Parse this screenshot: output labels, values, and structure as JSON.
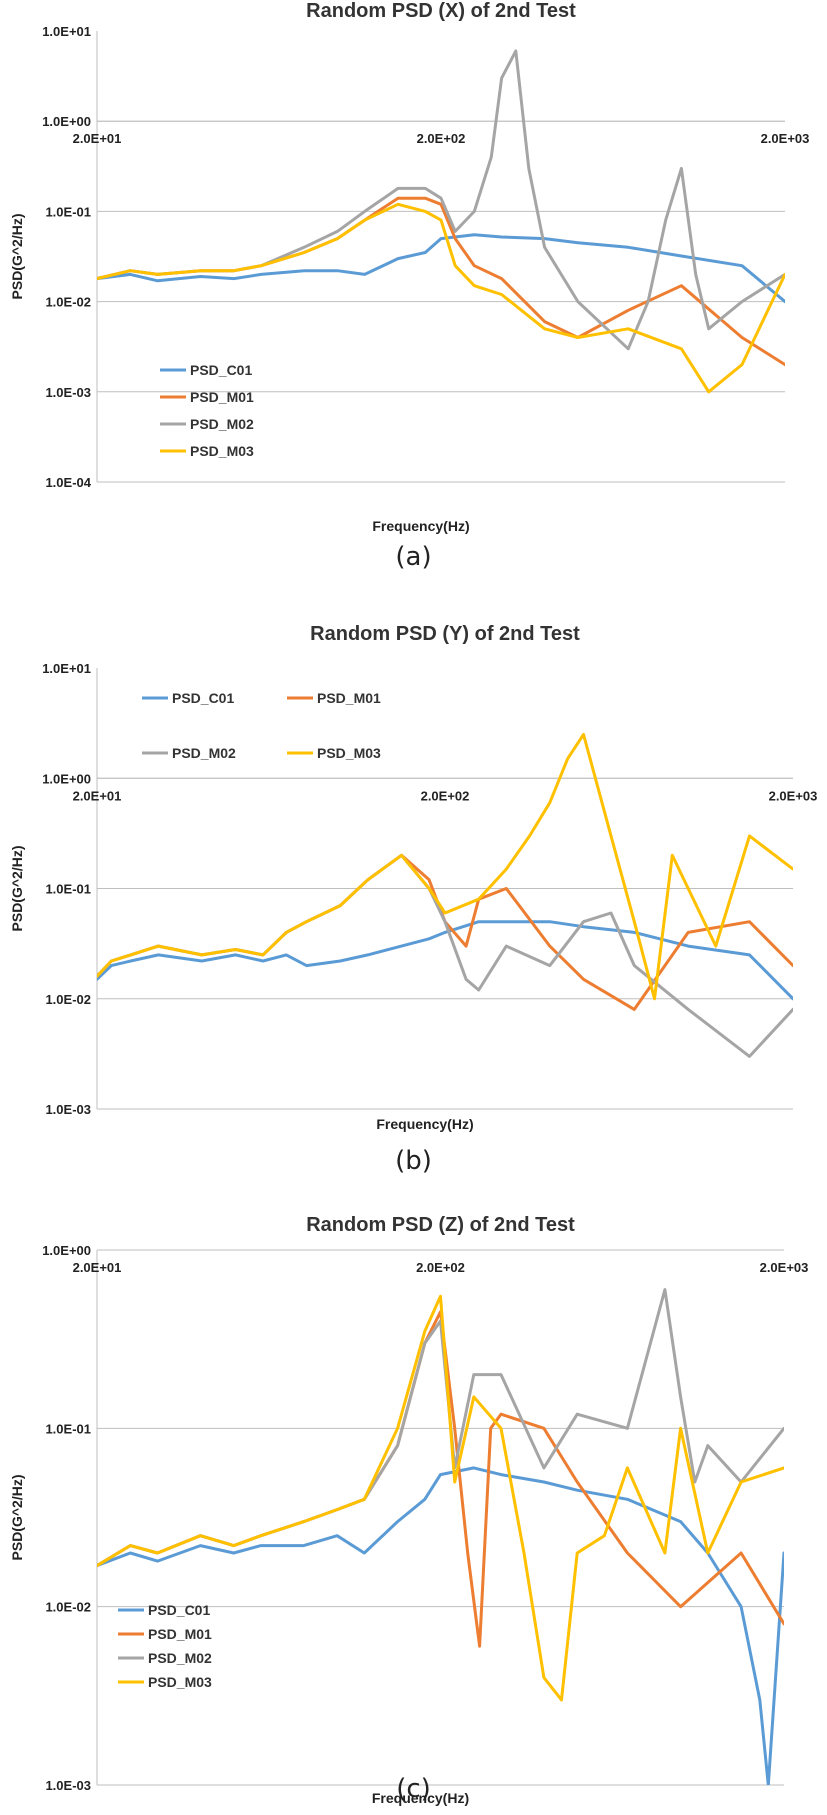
{
  "colors": {
    "PSD_C01": "#5b9bd5",
    "PSD_M01": "#ed7d31",
    "PSD_M02": "#a5a5a5",
    "PSD_M03": "#ffc000",
    "grid": "#bfbfbf"
  },
  "chart_data": [
    {
      "type": "line",
      "caption": "(a)",
      "title": "Random PSD (X) of 2nd Test",
      "xlabel": "Frequency(Hz)",
      "ylabel": "PSD(G^2/Hz)",
      "xscale": "log",
      "yscale": "log",
      "xlim": [
        20,
        2000
      ],
      "ylim": [
        0.0001,
        10
      ],
      "xtick_labels": [
        "2.0E+01",
        "2.0E+02",
        "2.0E+03"
      ],
      "xtick_values": [
        20,
        200,
        2000
      ],
      "xticks_at_y": 1.0,
      "ytick_labels": [
        "1.0E+01",
        "1.0E+00",
        "1.0E-01",
        "1.0E-02",
        "1.0E-03",
        "1.0E-04"
      ],
      "ytick_values": [
        10,
        1,
        0.1,
        0.01,
        0.001,
        0.0001
      ],
      "grid": true,
      "legend": {
        "placement": "lower-left",
        "layout": "vertical",
        "entries": [
          "PSD_C01",
          "PSD_M01",
          "PSD_M02",
          "PSD_M03"
        ]
      },
      "series": [
        {
          "name": "PSD_C01",
          "x": [
            20,
            25,
            30,
            40,
            50,
            60,
            80,
            100,
            120,
            150,
            180,
            200,
            250,
            300,
            400,
            500,
            700,
            1000,
            1500,
            2000
          ],
          "y": [
            0.018,
            0.02,
            0.017,
            0.019,
            0.018,
            0.02,
            0.022,
            0.022,
            0.02,
            0.03,
            0.035,
            0.05,
            0.055,
            0.052,
            0.05,
            0.045,
            0.04,
            0.032,
            0.025,
            0.01
          ]
        },
        {
          "name": "PSD_M01",
          "x": [
            20,
            25,
            30,
            40,
            50,
            60,
            80,
            100,
            120,
            150,
            180,
            200,
            220,
            250,
            300,
            400,
            500,
            700,
            1000,
            1500,
            2000
          ],
          "y": [
            0.018,
            0.022,
            0.02,
            0.022,
            0.022,
            0.025,
            0.035,
            0.05,
            0.08,
            0.14,
            0.14,
            0.12,
            0.05,
            0.025,
            0.018,
            0.006,
            0.004,
            0.008,
            0.015,
            0.004,
            0.002
          ]
        },
        {
          "name": "PSD_M02",
          "x": [
            20,
            25,
            30,
            40,
            50,
            60,
            80,
            100,
            120,
            150,
            180,
            200,
            220,
            250,
            280,
            300,
            330,
            360,
            400,
            500,
            700,
            800,
            900,
            1000,
            1100,
            1200,
            1500,
            2000
          ],
          "y": [
            0.018,
            0.022,
            0.02,
            0.022,
            0.022,
            0.025,
            0.04,
            0.06,
            0.1,
            0.18,
            0.18,
            0.14,
            0.06,
            0.1,
            0.4,
            3,
            6,
            0.3,
            0.04,
            0.01,
            0.003,
            0.01,
            0.08,
            0.3,
            0.02,
            0.005,
            0.01,
            0.02
          ]
        },
        {
          "name": "PSD_M03",
          "x": [
            20,
            25,
            30,
            40,
            50,
            60,
            80,
            100,
            120,
            150,
            180,
            200,
            220,
            250,
            300,
            400,
            500,
            700,
            1000,
            1200,
            1500,
            2000
          ],
          "y": [
            0.018,
            0.022,
            0.02,
            0.022,
            0.022,
            0.025,
            0.035,
            0.05,
            0.08,
            0.12,
            0.1,
            0.08,
            0.025,
            0.015,
            0.012,
            0.005,
            0.004,
            0.005,
            0.003,
            0.001,
            0.002,
            0.02
          ]
        }
      ]
    },
    {
      "type": "line",
      "caption": "(b)",
      "title": "Random PSD (Y) of 2nd Test",
      "xlabel": "Frequency(Hz)",
      "ylabel": "PSD(G^2/Hz)",
      "xscale": "log",
      "yscale": "log",
      "xlim": [
        20,
        2000
      ],
      "ylim": [
        0.001,
        10
      ],
      "xtick_labels": [
        "2.0E+01",
        "2.0E+02",
        "2.0E+03"
      ],
      "xtick_values": [
        20,
        200,
        2000
      ],
      "xticks_at_y": 1.0,
      "ytick_labels": [
        "1.0E+01",
        "1.0E+00",
        "1.0E-01",
        "1.0E-02",
        "1.0E-03"
      ],
      "ytick_values": [
        10,
        1,
        0.1,
        0.01,
        0.001
      ],
      "grid": true,
      "legend": {
        "placement": "top-left",
        "layout": "two-column",
        "entries": [
          "PSD_C01",
          "PSD_M01",
          "PSD_M02",
          "PSD_M03"
        ]
      },
      "series": [
        {
          "name": "PSD_C01",
          "x": [
            20,
            22,
            25,
            30,
            40,
            50,
            60,
            70,
            80,
            100,
            120,
            150,
            180,
            200,
            250,
            300,
            400,
            500,
            700,
            1000,
            1500,
            2000
          ],
          "y": [
            0.015,
            0.02,
            0.022,
            0.025,
            0.022,
            0.025,
            0.022,
            0.025,
            0.02,
            0.022,
            0.025,
            0.03,
            0.035,
            0.04,
            0.05,
            0.05,
            0.05,
            0.045,
            0.04,
            0.03,
            0.025,
            0.01
          ]
        },
        {
          "name": "PSD_M01",
          "x": [
            20,
            22,
            25,
            30,
            40,
            50,
            60,
            70,
            80,
            100,
            120,
            150,
            180,
            200,
            230,
            250,
            300,
            400,
            500,
            700,
            1000,
            1500,
            2000
          ],
          "y": [
            0.016,
            0.022,
            0.025,
            0.03,
            0.025,
            0.028,
            0.025,
            0.04,
            0.05,
            0.07,
            0.12,
            0.2,
            0.12,
            0.05,
            0.03,
            0.08,
            0.1,
            0.03,
            0.015,
            0.008,
            0.04,
            0.05,
            0.02
          ]
        },
        {
          "name": "PSD_M02",
          "x": [
            20,
            22,
            25,
            30,
            40,
            50,
            60,
            70,
            80,
            100,
            120,
            150,
            180,
            200,
            230,
            250,
            300,
            400,
            500,
            600,
            700,
            1000,
            1500,
            2000
          ],
          "y": [
            0.016,
            0.022,
            0.025,
            0.03,
            0.025,
            0.028,
            0.025,
            0.04,
            0.05,
            0.07,
            0.12,
            0.2,
            0.1,
            0.05,
            0.015,
            0.012,
            0.03,
            0.02,
            0.05,
            0.06,
            0.02,
            0.008,
            0.003,
            0.008
          ]
        },
        {
          "name": "PSD_M03",
          "x": [
            20,
            22,
            25,
            30,
            40,
            50,
            60,
            70,
            80,
            100,
            120,
            150,
            180,
            200,
            250,
            300,
            350,
            400,
            450,
            500,
            600,
            700,
            800,
            900,
            1000,
            1200,
            1500,
            2000
          ],
          "y": [
            0.016,
            0.022,
            0.025,
            0.03,
            0.025,
            0.028,
            0.025,
            0.04,
            0.05,
            0.07,
            0.12,
            0.2,
            0.1,
            0.06,
            0.08,
            0.15,
            0.3,
            0.6,
            1.5,
            2.5,
            0.3,
            0.05,
            0.01,
            0.2,
            0.1,
            0.03,
            0.3,
            0.15
          ]
        }
      ]
    },
    {
      "type": "line",
      "caption": "(c)",
      "title": "Random PSD (Z) of 2nd Test",
      "xlabel": "Frequency(Hz)",
      "ylabel": "PSD(G^2/Hz)",
      "xscale": "log",
      "yscale": "log",
      "xlim": [
        20,
        2000
      ],
      "ylim": [
        0.001,
        1
      ],
      "xtick_labels": [
        "2.0E+01",
        "2.0E+02",
        "2.0E+03"
      ],
      "xtick_values": [
        20,
        200,
        2000
      ],
      "xticks_at_y": 1.0,
      "ytick_labels": [
        "1.0E+00",
        "1.0E-01",
        "1.0E-02",
        "1.0E-03"
      ],
      "ytick_values": [
        1,
        0.1,
        0.01,
        0.001
      ],
      "grid": true,
      "legend": {
        "placement": "lower-left",
        "layout": "vertical",
        "entries": [
          "PSD_C01",
          "PSD_M01",
          "PSD_M02",
          "PSD_M03"
        ]
      },
      "series": [
        {
          "name": "PSD_C01",
          "x": [
            20,
            25,
            30,
            40,
            50,
            60,
            80,
            100,
            120,
            150,
            180,
            200,
            250,
            300,
            400,
            500,
            700,
            1000,
            1200,
            1500,
            1700,
            1800,
            2000
          ],
          "y": [
            0.017,
            0.02,
            0.018,
            0.022,
            0.02,
            0.022,
            0.022,
            0.025,
            0.02,
            0.03,
            0.04,
            0.055,
            0.06,
            0.055,
            0.05,
            0.045,
            0.04,
            0.03,
            0.02,
            0.01,
            0.003,
            0.001,
            0.02
          ]
        },
        {
          "name": "PSD_M01",
          "x": [
            20,
            25,
            30,
            40,
            50,
            60,
            80,
            100,
            120,
            150,
            180,
            200,
            220,
            240,
            260,
            280,
            300,
            400,
            500,
            700,
            1000,
            1500,
            2000
          ],
          "y": [
            0.017,
            0.022,
            0.02,
            0.025,
            0.022,
            0.025,
            0.03,
            0.035,
            0.04,
            0.08,
            0.3,
            0.45,
            0.1,
            0.02,
            0.006,
            0.1,
            0.12,
            0.1,
            0.05,
            0.02,
            0.01,
            0.02,
            0.008
          ]
        },
        {
          "name": "PSD_M02",
          "x": [
            20,
            25,
            30,
            40,
            50,
            60,
            80,
            100,
            120,
            150,
            180,
            200,
            220,
            250,
            300,
            400,
            500,
            700,
            900,
            1000,
            1100,
            1200,
            1500,
            2000
          ],
          "y": [
            0.017,
            0.022,
            0.02,
            0.025,
            0.022,
            0.025,
            0.03,
            0.035,
            0.04,
            0.08,
            0.3,
            0.4,
            0.06,
            0.2,
            0.2,
            0.06,
            0.12,
            0.1,
            0.6,
            0.15,
            0.05,
            0.08,
            0.05,
            0.1
          ]
        },
        {
          "name": "PSD_M03",
          "x": [
            20,
            25,
            30,
            40,
            50,
            60,
            80,
            100,
            120,
            150,
            180,
            200,
            220,
            250,
            300,
            350,
            400,
            450,
            500,
            600,
            700,
            900,
            1000,
            1200,
            1500,
            2000
          ],
          "y": [
            0.017,
            0.022,
            0.02,
            0.025,
            0.022,
            0.025,
            0.03,
            0.035,
            0.04,
            0.1,
            0.35,
            0.55,
            0.05,
            0.15,
            0.1,
            0.02,
            0.004,
            0.003,
            0.02,
            0.025,
            0.06,
            0.02,
            0.1,
            0.02,
            0.05,
            0.06
          ]
        }
      ]
    }
  ]
}
